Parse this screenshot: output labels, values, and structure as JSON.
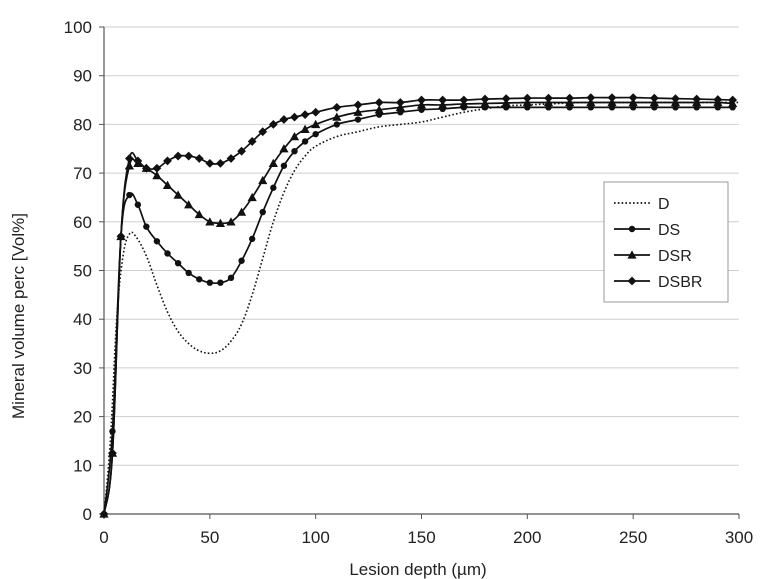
{
  "chart_data": {
    "type": "line",
    "title": "",
    "xlabel": "Lesion depth (µm)",
    "ylabel": "Mineral volume perc [Vol%]",
    "xlim": [
      0,
      300
    ],
    "ylim": [
      0,
      100
    ],
    "xticks": [
      0,
      50,
      100,
      150,
      200,
      250,
      300
    ],
    "yticks": [
      0,
      10,
      20,
      30,
      40,
      50,
      60,
      70,
      80,
      90,
      100
    ],
    "xtick_labels": [
      "0",
      "50",
      "100",
      "150",
      "200",
      "250",
      "300"
    ],
    "ytick_labels": [
      "0",
      "10",
      "20",
      "30",
      "40",
      "50",
      "60",
      "70",
      "80",
      "90",
      "100"
    ],
    "grid": "horizontal",
    "legend_position": "right",
    "colors": {
      "axis": "#555555",
      "grid": "#cfcfcf",
      "series": "#111111",
      "legend_border": "#9a9a9a"
    },
    "series": [
      {
        "name": "D",
        "style": "dotted",
        "marker": "none",
        "x": [
          0,
          3,
          6,
          9,
          12,
          15,
          20,
          25,
          30,
          35,
          40,
          45,
          50,
          55,
          60,
          65,
          70,
          75,
          80,
          85,
          90,
          95,
          100,
          110,
          120,
          130,
          140,
          150,
          160,
          170,
          180,
          190,
          200,
          210,
          220,
          230,
          240,
          250,
          260,
          270,
          280,
          290,
          300
        ],
        "y": [
          0,
          15,
          40,
          53,
          57.5,
          57,
          53,
          47,
          41.5,
          37.5,
          35,
          33.5,
          33,
          33.5,
          35.5,
          39,
          45,
          52.5,
          60,
          66,
          70.5,
          73.5,
          75.5,
          77.5,
          78.5,
          79.5,
          80,
          80.5,
          81.5,
          82.5,
          83.2,
          83.8,
          84,
          84.2,
          84.4,
          84.5,
          84.5,
          84.5,
          84.5,
          84.5,
          84.5,
          84.5,
          84.5
        ]
      },
      {
        "name": "DS",
        "style": "solid",
        "marker": "circle",
        "x": [
          0,
          4,
          8,
          12,
          16,
          20,
          25,
          30,
          35,
          40,
          45,
          50,
          55,
          60,
          65,
          70,
          75,
          80,
          85,
          90,
          95,
          100,
          110,
          120,
          130,
          140,
          150,
          160,
          170,
          180,
          190,
          200,
          210,
          220,
          230,
          240,
          250,
          260,
          270,
          280,
          290,
          297
        ],
        "y": [
          0,
          17,
          57,
          65.5,
          63.5,
          59,
          56,
          53.5,
          51.5,
          49.5,
          48.2,
          47.5,
          47.5,
          48.5,
          52,
          56.5,
          62,
          67,
          71.5,
          74.5,
          76.5,
          78,
          80,
          81,
          82,
          82.5,
          83,
          83.2,
          83.5,
          83.5,
          83.5,
          83.5,
          83.5,
          83.5,
          83.5,
          83.5,
          83.5,
          83.5,
          83.5,
          83.5,
          83.5,
          83.5
        ]
      },
      {
        "name": "DSR",
        "style": "solid",
        "marker": "triangle",
        "x": [
          0,
          4,
          8,
          12,
          16,
          20,
          25,
          30,
          35,
          40,
          45,
          50,
          55,
          60,
          65,
          70,
          75,
          80,
          85,
          90,
          95,
          100,
          110,
          120,
          130,
          140,
          150,
          160,
          170,
          180,
          190,
          200,
          210,
          220,
          230,
          240,
          250,
          260,
          270,
          280,
          290,
          297
        ],
        "y": [
          0,
          12.5,
          57,
          71.5,
          72,
          71,
          69.5,
          67.5,
          65.5,
          63.5,
          61.5,
          60,
          59.7,
          60,
          62,
          65,
          68.5,
          72,
          75,
          77.5,
          79,
          80,
          81.5,
          82.5,
          83,
          83.5,
          84,
          84,
          84.2,
          84.3,
          84.4,
          84.5,
          84.5,
          84.5,
          84.5,
          84.5,
          84.5,
          84.5,
          84.5,
          84.5,
          84.5,
          84.3
        ]
      },
      {
        "name": "DSBR",
        "style": "solid",
        "marker": "diamond",
        "x": [
          0,
          4,
          8,
          12,
          16,
          20,
          25,
          30,
          35,
          40,
          45,
          50,
          55,
          60,
          65,
          70,
          75,
          80,
          85,
          90,
          95,
          100,
          110,
          120,
          130,
          140,
          150,
          160,
          170,
          180,
          190,
          200,
          210,
          220,
          230,
          240,
          250,
          260,
          270,
          280,
          290,
          297
        ],
        "y": [
          0,
          12.5,
          57,
          73,
          72.5,
          71,
          71,
          72.5,
          73.5,
          73.5,
          73,
          72,
          72,
          73,
          74.5,
          76.5,
          78.5,
          80,
          81,
          81.5,
          82,
          82.5,
          83.5,
          84,
          84.5,
          84.5,
          85,
          85,
          85,
          85.2,
          85.3,
          85.4,
          85.4,
          85.4,
          85.5,
          85.5,
          85.5,
          85.4,
          85.3,
          85.2,
          85.1,
          85
        ]
      }
    ]
  }
}
